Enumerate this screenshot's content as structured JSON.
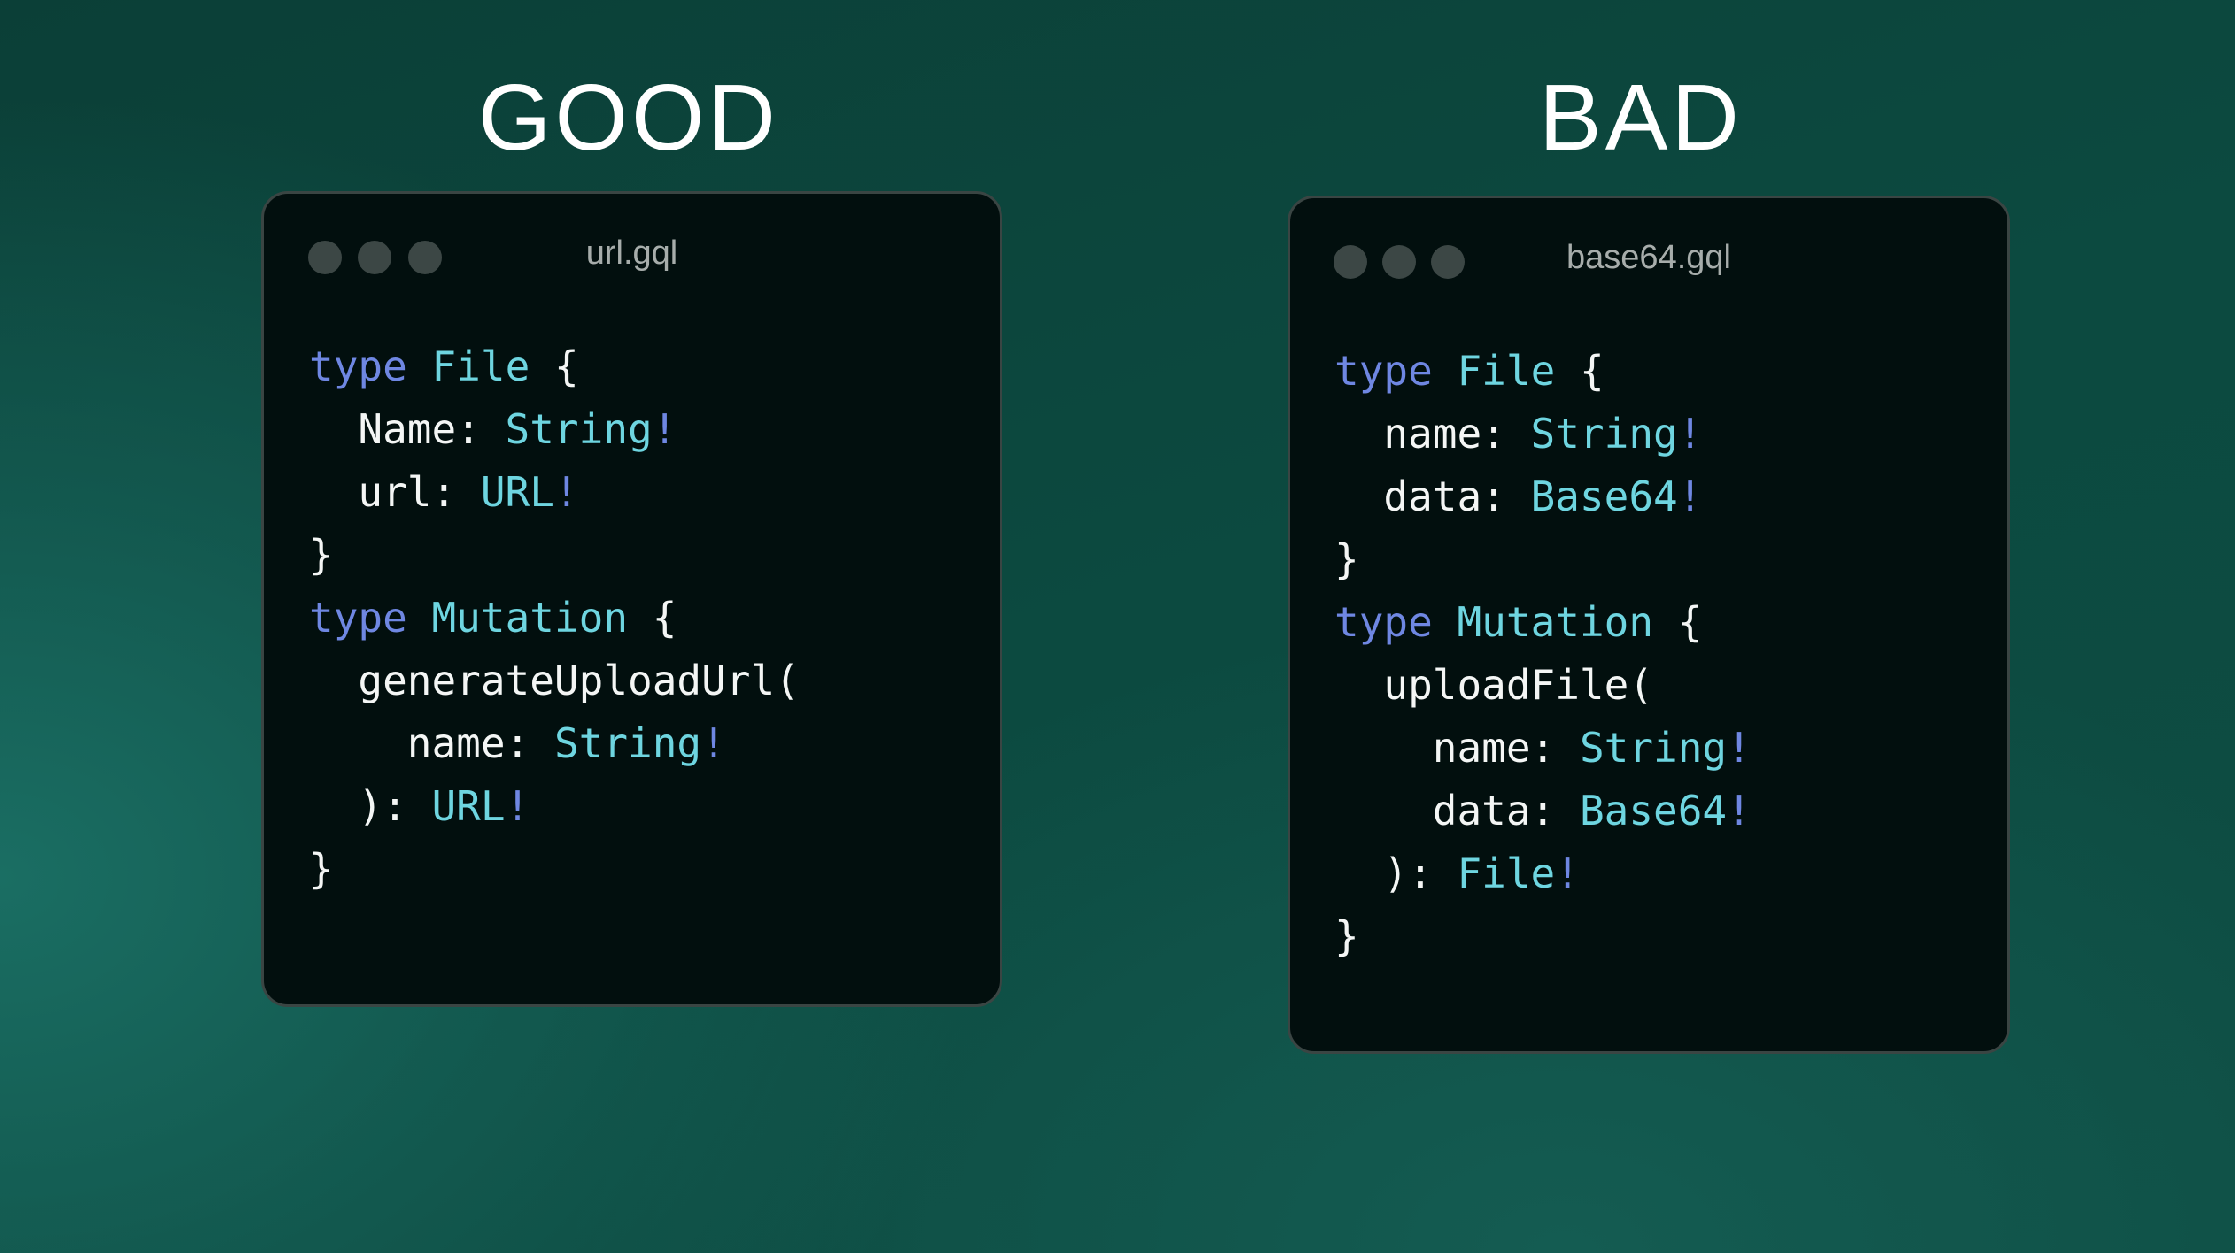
{
  "panels": [
    {
      "heading": "GOOD",
      "filename": "url.gql",
      "lines": [
        {
          "indent": 0,
          "tokens": [
            {
              "text": "type",
              "kind": "kw"
            },
            {
              "text": " ",
              "kind": "plain"
            },
            {
              "text": "File",
              "kind": "ty"
            },
            {
              "text": " {",
              "kind": "plain"
            }
          ]
        },
        {
          "indent": 1,
          "tokens": [
            {
              "text": "Name: ",
              "kind": "plain"
            },
            {
              "text": "String",
              "kind": "ty"
            },
            {
              "text": "!",
              "kind": "bang"
            }
          ]
        },
        {
          "indent": 1,
          "tokens": [
            {
              "text": "url: ",
              "kind": "plain"
            },
            {
              "text": "URL",
              "kind": "ty"
            },
            {
              "text": "!",
              "kind": "bang"
            }
          ]
        },
        {
          "indent": 0,
          "tokens": [
            {
              "text": "}",
              "kind": "plain"
            }
          ]
        },
        {
          "indent": 0,
          "tokens": [
            {
              "text": "type",
              "kind": "kw"
            },
            {
              "text": " ",
              "kind": "plain"
            },
            {
              "text": "Mutation",
              "kind": "ty"
            },
            {
              "text": " {",
              "kind": "plain"
            }
          ]
        },
        {
          "indent": 1,
          "tokens": [
            {
              "text": "generateUploadUrl(",
              "kind": "plain"
            }
          ]
        },
        {
          "indent": 2,
          "tokens": [
            {
              "text": "name: ",
              "kind": "plain"
            },
            {
              "text": "String",
              "kind": "ty"
            },
            {
              "text": "!",
              "kind": "bang"
            }
          ]
        },
        {
          "indent": 1,
          "tokens": [
            {
              "text": "): ",
              "kind": "plain"
            },
            {
              "text": "URL",
              "kind": "ty"
            },
            {
              "text": "!",
              "kind": "bang"
            }
          ]
        },
        {
          "indent": 0,
          "tokens": [
            {
              "text": "}",
              "kind": "plain"
            }
          ]
        }
      ]
    },
    {
      "heading": "BAD",
      "filename": "base64.gql",
      "lines": [
        {
          "indent": 0,
          "tokens": [
            {
              "text": "type",
              "kind": "kw"
            },
            {
              "text": " ",
              "kind": "plain"
            },
            {
              "text": "File",
              "kind": "ty"
            },
            {
              "text": " {",
              "kind": "plain"
            }
          ]
        },
        {
          "indent": 1,
          "tokens": [
            {
              "text": "name: ",
              "kind": "plain"
            },
            {
              "text": "String",
              "kind": "ty"
            },
            {
              "text": "!",
              "kind": "bang"
            }
          ]
        },
        {
          "indent": 1,
          "tokens": [
            {
              "text": "data: ",
              "kind": "plain"
            },
            {
              "text": "Base64",
              "kind": "ty"
            },
            {
              "text": "!",
              "kind": "bang"
            }
          ]
        },
        {
          "indent": 0,
          "tokens": [
            {
              "text": "}",
              "kind": "plain"
            }
          ]
        },
        {
          "indent": 0,
          "tokens": [
            {
              "text": "type",
              "kind": "kw"
            },
            {
              "text": " ",
              "kind": "plain"
            },
            {
              "text": "Mutation",
              "kind": "ty"
            },
            {
              "text": " {",
              "kind": "plain"
            }
          ]
        },
        {
          "indent": 1,
          "tokens": [
            {
              "text": "uploadFile(",
              "kind": "plain"
            }
          ]
        },
        {
          "indent": 2,
          "tokens": [
            {
              "text": "name: ",
              "kind": "plain"
            },
            {
              "text": "String",
              "kind": "ty"
            },
            {
              "text": "!",
              "kind": "bang"
            }
          ]
        },
        {
          "indent": 2,
          "tokens": [
            {
              "text": "data: ",
              "kind": "plain"
            },
            {
              "text": "Base64",
              "kind": "ty"
            },
            {
              "text": "!",
              "kind": "bang"
            }
          ]
        },
        {
          "indent": 1,
          "tokens": [
            {
              "text": "): ",
              "kind": "plain"
            },
            {
              "text": "File",
              "kind": "ty"
            },
            {
              "text": "!",
              "kind": "bang"
            }
          ]
        },
        {
          "indent": 0,
          "tokens": [
            {
              "text": "}",
              "kind": "plain"
            }
          ]
        }
      ]
    }
  ],
  "colors": {
    "keyword": "#6f87e2",
    "type": "#6ed5e0",
    "text": "#f4f6f5",
    "window": "#020f0e"
  }
}
